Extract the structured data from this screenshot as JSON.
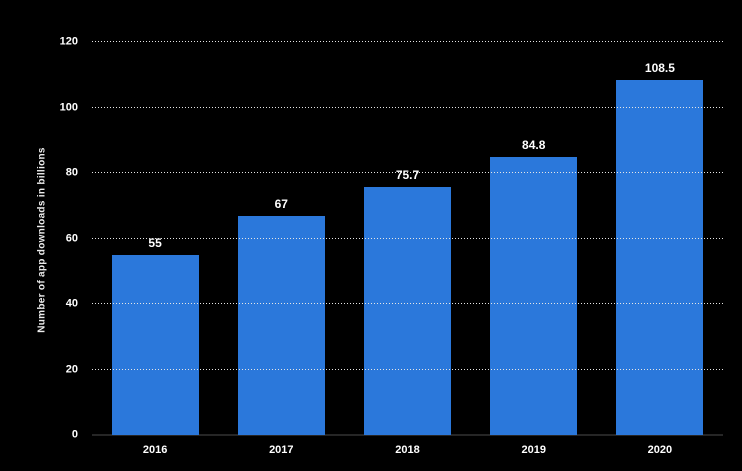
{
  "chart_data": {
    "type": "bar",
    "categories": [
      "2016",
      "2017",
      "2018",
      "2019",
      "2020"
    ],
    "values": [
      55,
      67,
      75.7,
      84.8,
      108.5
    ],
    "value_labels": [
      "55",
      "67",
      "75.7",
      "84.8",
      "108.5"
    ],
    "title": "",
    "xlabel": "",
    "ylabel": "Number of app downloads in billions",
    "ylim": [
      0,
      120
    ],
    "yticks": [
      0,
      20,
      40,
      60,
      80,
      100,
      120
    ],
    "grid": "horizontal-dotted",
    "legend": "none"
  },
  "colors": {
    "background": "#000000",
    "bar": "#2b78db",
    "text": "#ffffff",
    "gridline": "#e6e6e6",
    "axis_line": "#262626"
  }
}
